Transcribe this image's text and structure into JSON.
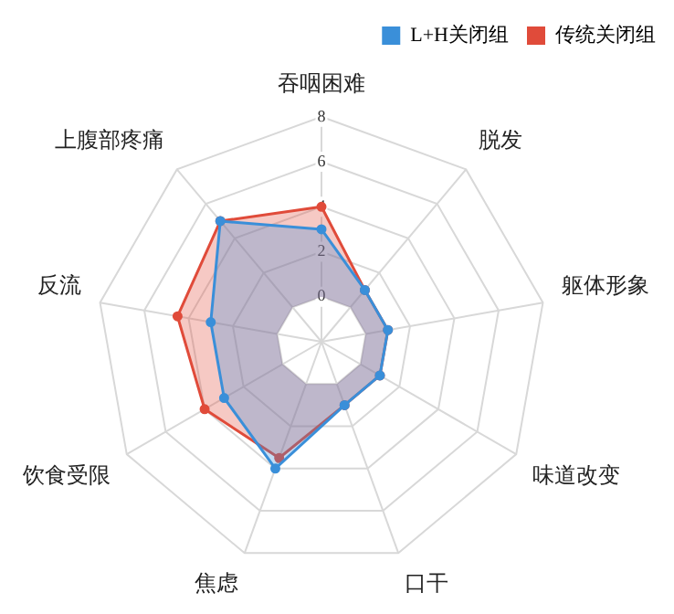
{
  "chart_data": {
    "type": "radar",
    "categories": [
      "吞咽困难",
      "脱发",
      "躯体形象",
      "味道改变",
      "口干",
      "焦虑",
      "饮食受限",
      "反流",
      "上腹部疼痛"
    ],
    "series": [
      {
        "name": "L+H关闭组",
        "color": "#3a8fd9",
        "values": [
          3,
          1,
          1,
          1,
          1,
          4,
          3,
          3,
          5
        ]
      },
      {
        "name": "传统关闭组",
        "color": "#e04b3a",
        "values": [
          4,
          1,
          1,
          1,
          1,
          3.5,
          4,
          4.5,
          5
        ]
      }
    ],
    "ylim": [
      -2,
      8
    ],
    "yticks": [
      0,
      2,
      4,
      6,
      8
    ],
    "grid": true,
    "legend": "top right",
    "marker": "circle"
  }
}
